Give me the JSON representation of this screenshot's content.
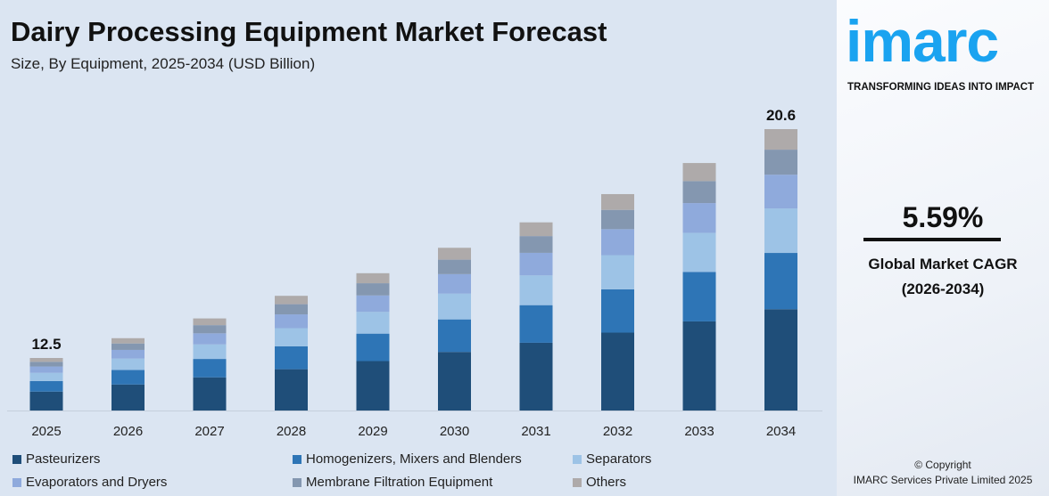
{
  "header": {
    "title": "Dairy Processing Equipment Market Forecast",
    "subtitle": "Size, By Equipment, 2025-2034 (USD Billion)"
  },
  "brand": {
    "logo": "imarc",
    "tagline": "TRANSFORMING IDEAS INTO IMPACT",
    "color": "#1aa3f0"
  },
  "cagr": {
    "value": "5.59%",
    "label": "Global Market CAGR",
    "period": "(2026-2034)"
  },
  "copyright": {
    "line1": "© Copyright",
    "line2": "IMARC Services Private Limited 2025"
  },
  "chart_data": {
    "type": "bar",
    "stacked": true,
    "categories": [
      "2025",
      "2026",
      "2027",
      "2028",
      "2029",
      "2030",
      "2031",
      "2032",
      "2033",
      "2034"
    ],
    "totals": [
      12.5,
      13.2,
      13.9,
      14.7,
      15.5,
      16.4,
      17.3,
      18.3,
      19.4,
      20.6
    ],
    "data_labels": {
      "2025": "12.5",
      "2034": "20.6"
    },
    "series": [
      {
        "name": "Pasteurizers",
        "color": "#1f4e79",
        "share": 0.36
      },
      {
        "name": "Homogenizers, Mixers and Blenders",
        "color": "#2e75b6",
        "share": 0.2
      },
      {
        "name": "Separators",
        "color": "#9dc3e6",
        "share": 0.158
      },
      {
        "name": "Evaporators and Dryers",
        "color": "#8faadc",
        "share": 0.12
      },
      {
        "name": "Membrane Filtration Equipment",
        "color": "#8497b0",
        "share": 0.089
      },
      {
        "name": "Others",
        "color": "#aeaaaa",
        "share": 0.073
      }
    ],
    "legend_position": "bottom",
    "grid": false
  }
}
